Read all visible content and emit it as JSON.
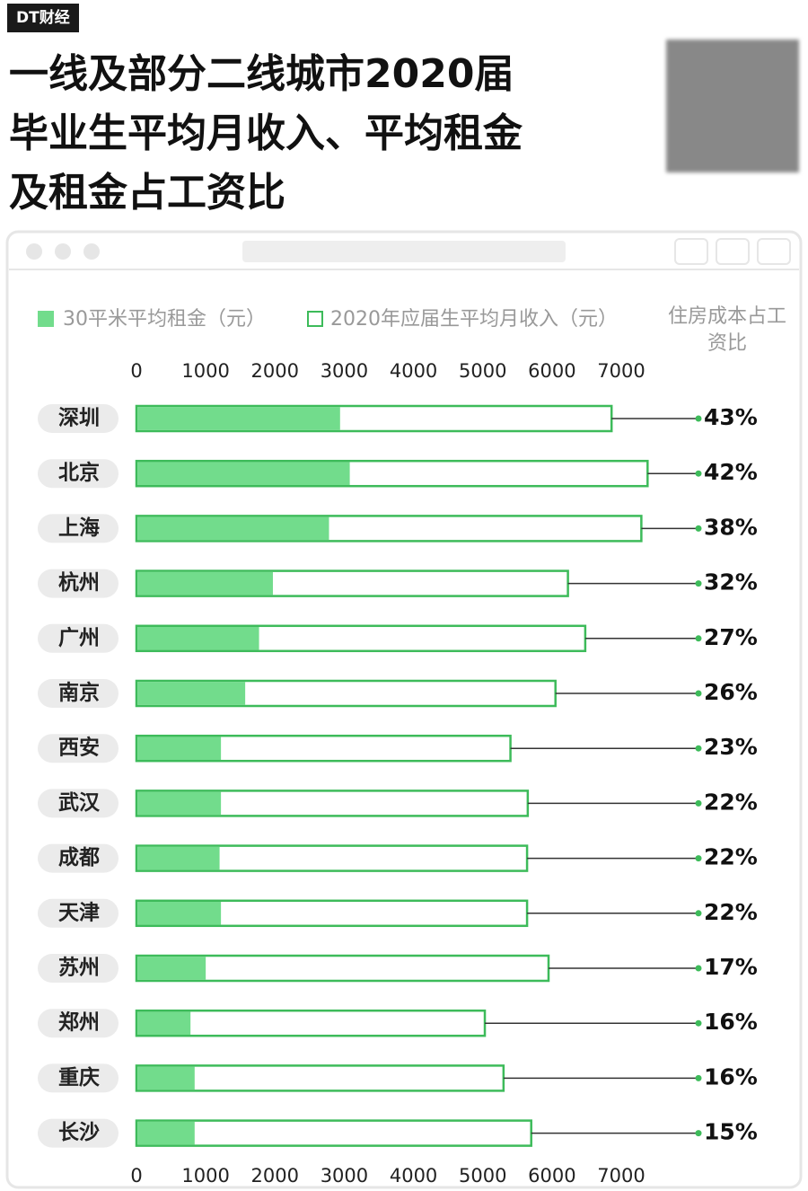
{
  "header": {
    "brand": "DT财经",
    "title_lines": [
      "一线及部分二线城市2020届",
      "毕业生平均月收入、平均租金",
      "及租金占工资比"
    ]
  },
  "chart_data": {
    "type": "bar",
    "categories": [
      "深圳",
      "北京",
      "上海",
      "杭州",
      "广州",
      "南京",
      "西安",
      "武汉",
      "成都",
      "天津",
      "苏州",
      "郑州",
      "重庆",
      "长沙"
    ],
    "series": [
      {
        "name": "30平米平均租金（元）",
        "color": "#72dc8c",
        "values": [
          2940,
          3080,
          2780,
          1970,
          1770,
          1570,
          1220,
          1220,
          1200,
          1220,
          1000,
          780,
          840,
          840
        ]
      },
      {
        "name": "2020年应届生平均月收入（元）",
        "color": "#3dbb5a",
        "values": [
          6860,
          7380,
          7290,
          6230,
          6480,
          6050,
          5400,
          5650,
          5640,
          5640,
          5950,
          5030,
          5300,
          5700
        ]
      },
      {
        "name": "住房成本占工资比",
        "color": "#3dbb5a",
        "values": [
          43,
          42,
          38,
          32,
          27,
          26,
          23,
          22,
          22,
          22,
          17,
          16,
          16,
          15
        ],
        "value_labels": [
          "43%",
          "42%",
          "38%",
          "32%",
          "27%",
          "26%",
          "23%",
          "22%",
          "22%",
          "22%",
          "17%",
          "16%",
          "16%",
          "15%"
        ]
      }
    ],
    "xlim": [
      0,
      7000
    ],
    "xticks": [
      0,
      1000,
      2000,
      3000,
      4000,
      5000,
      6000,
      7000
    ]
  }
}
